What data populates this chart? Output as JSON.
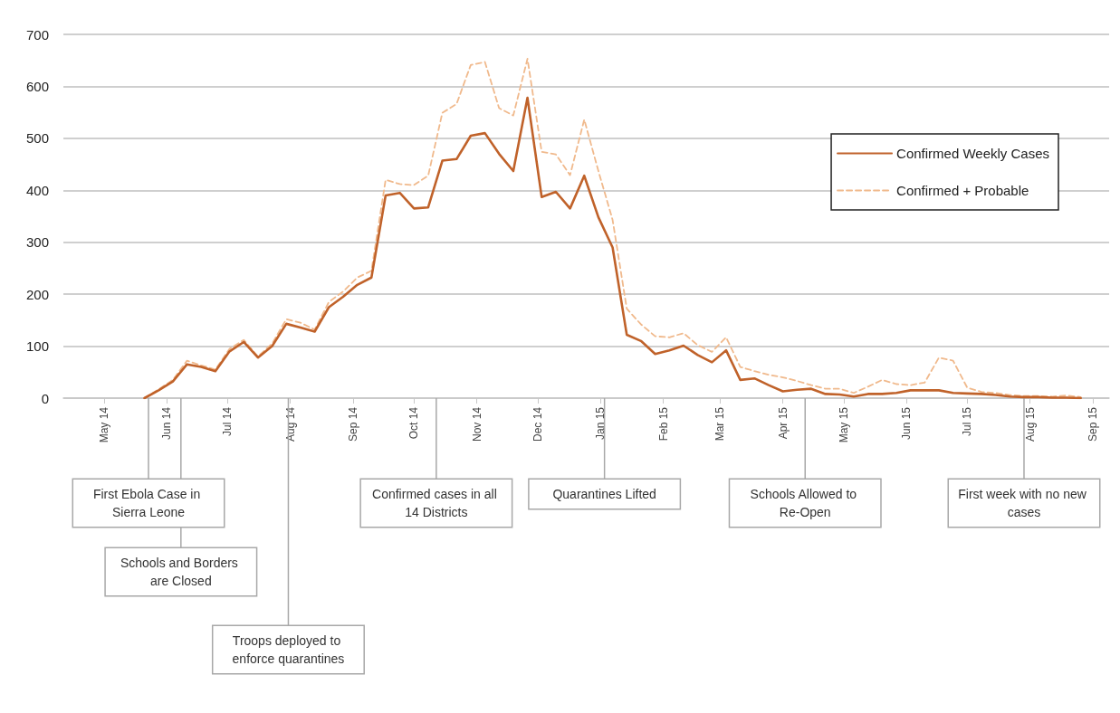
{
  "chart_data": {
    "type": "line",
    "x": [
      "2014-05-21",
      "2014-05-28",
      "2014-06-04",
      "2014-06-11",
      "2014-06-18",
      "2014-06-25",
      "2014-07-02",
      "2014-07-09",
      "2014-07-16",
      "2014-07-23",
      "2014-07-30",
      "2014-08-06",
      "2014-08-13",
      "2014-08-20",
      "2014-08-27",
      "2014-09-03",
      "2014-09-10",
      "2014-09-17",
      "2014-09-24",
      "2014-10-01",
      "2014-10-08",
      "2014-10-15",
      "2014-10-22",
      "2014-10-29",
      "2014-11-05",
      "2014-11-12",
      "2014-11-19",
      "2014-11-26",
      "2014-12-03",
      "2014-12-10",
      "2014-12-17",
      "2014-12-24",
      "2014-12-31",
      "2015-01-07",
      "2015-01-14",
      "2015-01-21",
      "2015-01-28",
      "2015-02-04",
      "2015-02-11",
      "2015-02-18",
      "2015-02-25",
      "2015-03-04",
      "2015-03-11",
      "2015-03-18",
      "2015-03-25",
      "2015-04-01",
      "2015-04-08",
      "2015-04-15",
      "2015-04-22",
      "2015-04-29",
      "2015-05-06",
      "2015-05-13",
      "2015-05-20",
      "2015-05-27",
      "2015-06-03",
      "2015-06-10",
      "2015-06-17",
      "2015-06-24",
      "2015-07-01",
      "2015-07-08",
      "2015-07-15",
      "2015-07-22",
      "2015-07-29",
      "2015-08-05",
      "2015-08-12",
      "2015-08-19",
      "2015-08-26"
    ],
    "series": [
      {
        "name": "Confirmed Weekly Cases",
        "color": "#c0622a",
        "line_style": "solid",
        "values": [
          0,
          15,
          32,
          65,
          60,
          52,
          90,
          108,
          78,
          100,
          143,
          136,
          128,
          175,
          195,
          218,
          232,
          390,
          395,
          365,
          367,
          457,
          460,
          505,
          510,
          470,
          437,
          578,
          387,
          397,
          365,
          428,
          348,
          290,
          122,
          110,
          85,
          92,
          101,
          83,
          69,
          92,
          35,
          38,
          25,
          13,
          16,
          18,
          8,
          7,
          3,
          8,
          8,
          10,
          15,
          15,
          15,
          10,
          9,
          8,
          6,
          3,
          2,
          2,
          1,
          1,
          0
        ]
      },
      {
        "name": "Confirmed + Probable",
        "color": "#f0b98c",
        "line_style": "dashed",
        "values": [
          0,
          17,
          35,
          72,
          63,
          55,
          95,
          112,
          80,
          105,
          152,
          145,
          132,
          185,
          205,
          232,
          245,
          420,
          412,
          410,
          428,
          549,
          566,
          641,
          647,
          558,
          544,
          653,
          474,
          469,
          429,
          536,
          437,
          343,
          172,
          142,
          119,
          117,
          125,
          102,
          89,
          117,
          60,
          52,
          45,
          40,
          33,
          25,
          18,
          18,
          10,
          22,
          35,
          27,
          25,
          30,
          78,
          72,
          20,
          12,
          10,
          6,
          4,
          4,
          3,
          5,
          2
        ]
      }
    ],
    "xlim": [
      "2014-04-11",
      "2015-09-09"
    ],
    "xticks": [
      {
        "value": "2014-05-01",
        "label": "May 14"
      },
      {
        "value": "2014-06-01",
        "label": "Jun 14"
      },
      {
        "value": "2014-07-01",
        "label": "Jul 14"
      },
      {
        "value": "2014-08-01",
        "label": "Aug 14"
      },
      {
        "value": "2014-09-01",
        "label": "Sep 14"
      },
      {
        "value": "2014-10-01",
        "label": "Oct 14"
      },
      {
        "value": "2014-11-01",
        "label": "Nov 14"
      },
      {
        "value": "2014-12-01",
        "label": "Dec 14"
      },
      {
        "value": "2015-01-01",
        "label": "Jan 15"
      },
      {
        "value": "2015-02-01",
        "label": "Feb 15"
      },
      {
        "value": "2015-03-01",
        "label": "Mar 15"
      },
      {
        "value": "2015-04-01",
        "label": "Apr 15"
      },
      {
        "value": "2015-05-01",
        "label": "May 15"
      },
      {
        "value": "2015-06-01",
        "label": "Jun 15"
      },
      {
        "value": "2015-07-01",
        "label": "Jul 15"
      },
      {
        "value": "2015-08-01",
        "label": "Aug 15"
      },
      {
        "value": "2015-09-01",
        "label": "Sep 15"
      }
    ],
    "ylim": [
      0,
      700
    ],
    "yticks": [
      0,
      100,
      200,
      300,
      400,
      500,
      600,
      700
    ],
    "grid": "y",
    "legend": "top right",
    "marker": "none",
    "ref_lines": [
      {
        "axis": "x",
        "value": "2014-05-23",
        "label": "First Ebola Case in Sierra Leone"
      },
      {
        "axis": "x",
        "value": "2014-06-08",
        "label": "Schools and Borders are Closed"
      },
      {
        "axis": "x",
        "value": "2014-07-31",
        "label": "Troops deployed to enforce quarantines"
      },
      {
        "axis": "x",
        "value": "2014-10-12",
        "label": "Confirmed cases in all 14 Districts"
      },
      {
        "axis": "x",
        "value": "2015-01-03",
        "label": "Quarantines Lifted"
      },
      {
        "axis": "x",
        "value": "2015-04-12",
        "label": "Schools Allowed to Re-Open"
      },
      {
        "axis": "x",
        "value": "2015-07-29",
        "label": "First week with no new cases"
      }
    ]
  }
}
